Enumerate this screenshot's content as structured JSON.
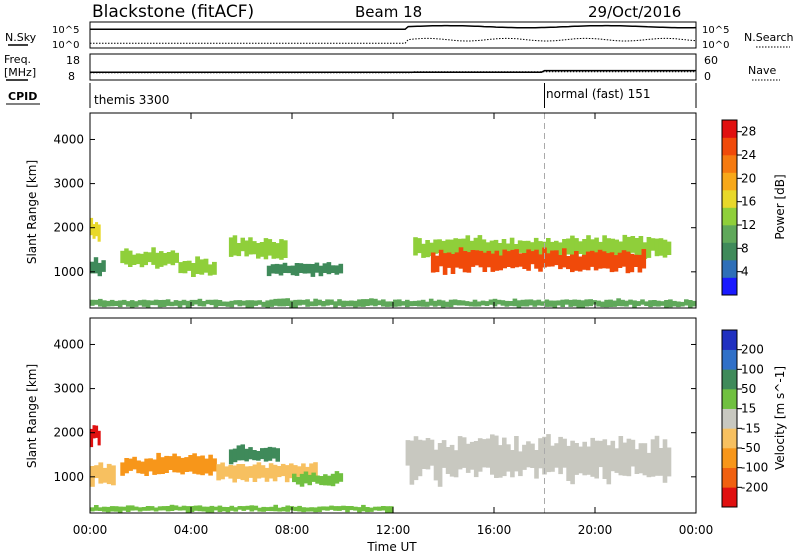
{
  "header": {
    "station": "Blackstone (fitACF)",
    "beam": "Beam 18",
    "date": "29/Oct/2016"
  },
  "summary": {
    "nsky_label": "N.Sky",
    "nsearch_label": "N.Search",
    "count_top_label": "10^5",
    "count_bottom_label": "10^0",
    "freq_label": "Freq.",
    "freq_unit_label": "[MHz]",
    "freq_max_label": "18",
    "freq_min_label": "8",
    "nave_label": "Nave",
    "nave_max_label": "60",
    "nave_min_label": "0",
    "cpid_label": "CPID",
    "cpid_segments": [
      {
        "label": "themis 3300",
        "start_hour": 0,
        "end_hour": 18
      },
      {
        "label": "normal (fast) 151",
        "start_hour": 18,
        "end_hour": 24
      }
    ]
  },
  "chart_data": [
    {
      "type": "heatmap",
      "panel": "power",
      "ylabel": "Slant Range [km]",
      "xlabel": "",
      "xlim": [
        0,
        24
      ],
      "ylim": [
        180,
        4600
      ],
      "y_ticks": [
        "1000",
        "2000",
        "3000",
        "4000"
      ],
      "y_tick_values": [
        1000,
        2000,
        3000,
        4000
      ],
      "colorbar": {
        "label": "Power [dB]",
        "tick_labels": [
          "4",
          "8",
          "12",
          "16",
          "20",
          "24",
          "28"
        ],
        "tick_values": [
          4,
          8,
          12,
          16,
          20,
          24,
          28
        ],
        "range": [
          0,
          30
        ],
        "colors": [
          "#1a1aff",
          "#2e6fb8",
          "#3f8a5a",
          "#5fa85a",
          "#8fcf3a",
          "#e8d82a",
          "#f7a81a",
          "#f57a10",
          "#f04a0a",
          "#e01010"
        ]
      },
      "regions": [
        {
          "t0": 0.0,
          "t1": 0.4,
          "r0": 1700,
          "r1": 2200,
          "value": 16
        },
        {
          "t0": 0.0,
          "t1": 0.6,
          "r0": 900,
          "r1": 1300,
          "value": 8
        },
        {
          "t0": 1.2,
          "t1": 3.5,
          "r0": 1100,
          "r1": 1500,
          "value": 14
        },
        {
          "t0": 3.5,
          "t1": 5.0,
          "r0": 900,
          "r1": 1300,
          "value": 12
        },
        {
          "t0": 5.5,
          "t1": 7.8,
          "r0": 1300,
          "r1": 1800,
          "value": 12
        },
        {
          "t0": 7.0,
          "t1": 10.0,
          "r0": 900,
          "r1": 1200,
          "value": 8
        },
        {
          "t0": 12.8,
          "t1": 23.0,
          "r0": 1300,
          "r1": 1800,
          "value": 14
        },
        {
          "t0": 13.5,
          "t1": 22.0,
          "r0": 1000,
          "r1": 1500,
          "value": 26
        },
        {
          "t0": 0.0,
          "t1": 24.0,
          "r0": 200,
          "r1": 380,
          "value": 10
        }
      ]
    },
    {
      "type": "heatmap",
      "panel": "velocity",
      "ylabel": "Slant Range [km]",
      "xlabel": "Time UT",
      "xlim": [
        0,
        24
      ],
      "ylim": [
        180,
        4600
      ],
      "x_ticks": [
        "00:00",
        "04:00",
        "08:00",
        "12:00",
        "16:00",
        "20:00",
        "00:00"
      ],
      "x_tick_values": [
        0,
        4,
        8,
        12,
        16,
        20,
        24
      ],
      "y_ticks": [
        "1000",
        "2000",
        "3000",
        "4000"
      ],
      "y_tick_values": [
        1000,
        2000,
        3000,
        4000
      ],
      "colorbar": {
        "label": "Velocity [m s^-1]",
        "tick_labels": [
          "200",
          "100",
          "50",
          "15",
          "-15",
          "-50",
          "-100",
          "-200"
        ],
        "tick_values": [
          200,
          100,
          50,
          15,
          -15,
          -50,
          -100,
          -200
        ],
        "range": [
          -250,
          250
        ],
        "colors": [
          "#2030c0",
          "#3070c8",
          "#3f8a5a",
          "#70c040",
          "#c8c8c0",
          "#f7c060",
          "#f7961a",
          "#f06010",
          "#e01010"
        ]
      },
      "regions": [
        {
          "t0": 0.0,
          "t1": 0.4,
          "r0": 1700,
          "r1": 2200,
          "value": -220
        },
        {
          "t0": 0.0,
          "t1": 1.0,
          "r0": 800,
          "r1": 1300,
          "value": -60
        },
        {
          "t0": 1.2,
          "t1": 5.0,
          "r0": 1000,
          "r1": 1500,
          "value": -130
        },
        {
          "t0": 5.5,
          "t1": 7.5,
          "r0": 1300,
          "r1": 1700,
          "value": 100
        },
        {
          "t0": 5.0,
          "t1": 9.0,
          "r0": 900,
          "r1": 1300,
          "value": -60
        },
        {
          "t0": 8.0,
          "t1": 10.0,
          "r0": 800,
          "r1": 1100,
          "value": 40
        },
        {
          "t0": 12.5,
          "t1": 23.0,
          "r0": 900,
          "r1": 1900,
          "value": 0
        },
        {
          "t0": 0.0,
          "t1": 12.0,
          "r0": 200,
          "r1": 350,
          "value": 40
        }
      ]
    }
  ]
}
